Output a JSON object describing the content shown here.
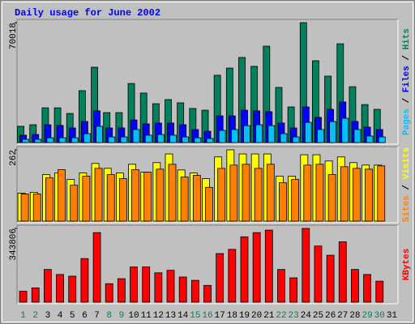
{
  "chart_data": [
    {
      "type": "bar",
      "title": "Daily usage for June 2002",
      "ylim": [
        0,
        70018
      ],
      "yticks": [
        70018
      ],
      "legend_separator": " / ",
      "series": [
        {
          "name": "Hits",
          "color": "#00805c",
          "values": [
            9500,
            10400,
            20300,
            20300,
            17000,
            30300,
            44000,
            17500,
            17500,
            34500,
            28900,
            22700,
            25100,
            23200,
            19900,
            18900,
            39300,
            43500,
            49700,
            44500,
            56300,
            32200,
            20800,
            70018,
            47800,
            38800,
            57700,
            32600,
            22200,
            19400,
            null
          ]
        },
        {
          "name": "Files",
          "color": "#0000ff",
          "values": [
            4300,
            4700,
            10400,
            10000,
            8500,
            12300,
            18500,
            8500,
            8500,
            13200,
            10900,
            11400,
            11400,
            10400,
            7600,
            6600,
            15600,
            15600,
            18900,
            18500,
            18000,
            11400,
            8500,
            20800,
            14700,
            19400,
            23700,
            12300,
            9000,
            7600,
            null
          ]
        },
        {
          "name": "Pages",
          "color": "#00c0ff",
          "values": [
            1900,
            1900,
            2800,
            2800,
            2800,
            5200,
            9500,
            3300,
            3300,
            7600,
            4300,
            4700,
            4300,
            3300,
            2800,
            2400,
            7100,
            7600,
            9900,
            10400,
            9900,
            5200,
            3300,
            11800,
            7600,
            12300,
            14200,
            7600,
            3800,
            3300,
            null
          ]
        }
      ]
    },
    {
      "type": "bar",
      "ylim": [
        0,
        262
      ],
      "yticks": [
        262
      ],
      "legend_separator": " / ",
      "series": [
        {
          "name": "Visits",
          "color": "#ffff00",
          "values": [
            103,
            106,
            171,
            177,
            153,
            177,
            212,
            194,
            177,
            209,
            180,
            215,
            247,
            188,
            177,
            156,
            236,
            262,
            247,
            247,
            247,
            165,
            165,
            244,
            244,
            221,
            236,
            215,
            206,
            206,
            null
          ]
        },
        {
          "name": "Sites",
          "color": "#ff8000",
          "values": [
            100,
            100,
            159,
            189,
            132,
            165,
            194,
            171,
            156,
            189,
            180,
            191,
            209,
            162,
            168,
            124,
            194,
            206,
            209,
            194,
            209,
            141,
            153,
            206,
            209,
            171,
            200,
            194,
            191,
            203,
            null
          ]
        }
      ]
    },
    {
      "type": "bar",
      "ylim": [
        0,
        343806
      ],
      "yticks": [
        343806
      ],
      "categories": [
        "1",
        "2",
        "3",
        "4",
        "5",
        "6",
        "7",
        "8",
        "9",
        "10",
        "11",
        "12",
        "13",
        "14",
        "15",
        "16",
        "17",
        "18",
        "19",
        "20",
        "21",
        "22",
        "23",
        "24",
        "25",
        "26",
        "27",
        "28",
        "29",
        "30",
        "31"
      ],
      "label_colors": [
        "#00805c",
        "#00805c",
        "#000000",
        "#000000",
        "#000000",
        "#000000",
        "#000000",
        "#00805c",
        "#00805c",
        "#000000",
        "#000000",
        "#000000",
        "#000000",
        "#000000",
        "#00805c",
        "#00805c",
        "#000000",
        "#000000",
        "#000000",
        "#000000",
        "#000000",
        "#00805c",
        "#00805c",
        "#000000",
        "#000000",
        "#000000",
        "#000000",
        "#000000",
        "#00805c",
        "#00805c",
        "#000000"
      ],
      "series": [
        {
          "name": "KBytes",
          "color": "#ff0000",
          "values": [
            50800,
            66400,
            152400,
            128900,
            121100,
            203200,
            324300,
            86000,
            109400,
            164100,
            164100,
            136700,
            148500,
            117200,
            101600,
            78100,
            226600,
            246100,
            304800,
            324300,
            336000,
            152400,
            113300,
            343806,
            261800,
            218800,
            281300,
            152400,
            128900,
            97700,
            null
          ]
        }
      ]
    }
  ]
}
